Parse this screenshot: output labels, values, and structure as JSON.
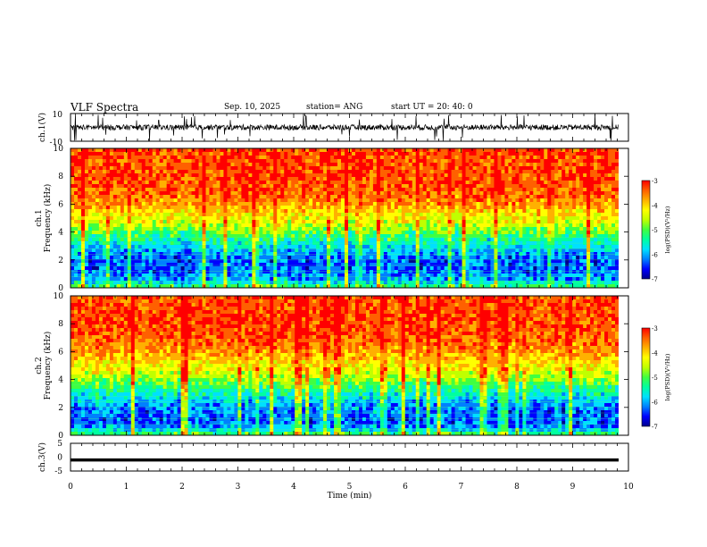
{
  "header": {
    "title": "VLF Spectra",
    "date": "Sep. 10, 2025",
    "station": "station= ANG",
    "start": "start  UT  =   20: 40: 0"
  },
  "colors": {
    "colormap": [
      "#00008b",
      "#0000ff",
      "#0080ff",
      "#00e0ff",
      "#00ffa0",
      "#40ff40",
      "#c0ff00",
      "#ffff00",
      "#ffb000",
      "#ff6000",
      "#ff0000"
    ],
    "axes": "#000000"
  },
  "chart_data": [
    {
      "type": "line",
      "panel": "ch1-waveform",
      "ylabel": "ch.1(V)",
      "ylim": [
        -10,
        10
      ],
      "yticks": [
        "10",
        "-10"
      ],
      "xlim": [
        0,
        10
      ],
      "description_values": {
        "baseline_v": 0,
        "typical_amplitude_v": 2,
        "spike_amplitude_v": 10
      }
    },
    {
      "type": "heatmap",
      "panel": "ch1-spectrogram",
      "ylabel": "Frequency (kHz)",
      "channel_label": "ch.1",
      "ylim": [
        0,
        10
      ],
      "yticks": [
        "0",
        "2",
        "4",
        "6",
        "8",
        "10"
      ],
      "xlim": [
        0,
        10
      ],
      "colorbar": {
        "label": "log(PSD)(V²/Hz)",
        "range": [
          -7,
          -3
        ],
        "ticks": [
          "-3",
          "-4",
          "-5",
          "-6",
          "-7"
        ]
      },
      "level_profile_khz": [
        [
          0,
          -5.2
        ],
        [
          0.5,
          -6.2
        ],
        [
          1,
          -6.5
        ],
        [
          2,
          -6.6
        ],
        [
          3,
          -6.0
        ],
        [
          3.5,
          -5.6
        ],
        [
          4,
          -5.2
        ],
        [
          5,
          -4.4
        ],
        [
          6,
          -3.8
        ],
        [
          7,
          -3.5
        ],
        [
          8,
          -3.4
        ],
        [
          10,
          -3.4
        ]
      ]
    },
    {
      "type": "heatmap",
      "panel": "ch2-spectrogram",
      "ylabel": "Frequency (kHz)",
      "channel_label": "ch.2",
      "ylim": [
        0,
        10
      ],
      "yticks": [
        "0",
        "2",
        "4",
        "6",
        "8",
        "10"
      ],
      "xlim": [
        0,
        10
      ],
      "colorbar": {
        "label": "log(PSD)(V²/Hz)",
        "range": [
          -7,
          -3
        ],
        "ticks": [
          "-3",
          "-4",
          "-5",
          "-6",
          "-7"
        ]
      },
      "level_profile_khz": [
        [
          0,
          -5.2
        ],
        [
          0.5,
          -6.3
        ],
        [
          1,
          -6.6
        ],
        [
          2,
          -6.4
        ],
        [
          3,
          -5.8
        ],
        [
          4,
          -5.0
        ],
        [
          5,
          -4.3
        ],
        [
          6,
          -3.8
        ],
        [
          7,
          -3.5
        ],
        [
          8,
          -3.4
        ],
        [
          10,
          -3.4
        ]
      ]
    },
    {
      "type": "line",
      "panel": "ch3-waveform",
      "ylabel": "ch.3(V)",
      "ylim": [
        -5,
        5
      ],
      "yticks": [
        "5",
        "0",
        "-5"
      ],
      "xlim": [
        0,
        10
      ],
      "xlabel": "Time (min)",
      "xticks": [
        "0",
        "1",
        "2",
        "3",
        "4",
        "5",
        "6",
        "7",
        "8",
        "9",
        "10"
      ],
      "description_values": {
        "constant_v": -1
      }
    }
  ]
}
